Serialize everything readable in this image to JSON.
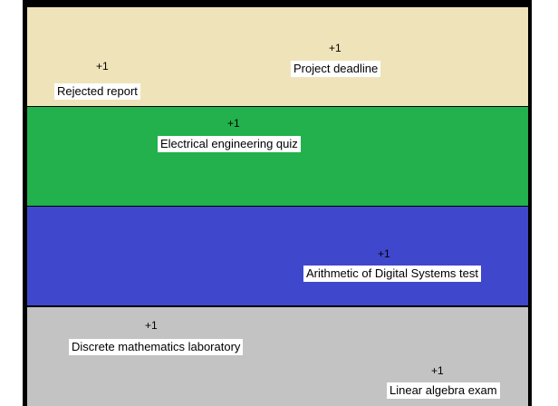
{
  "bands": [
    {
      "color": "#efe4b9",
      "items": [
        {
          "badge": "+1",
          "label": "Project deadline"
        },
        {
          "badge": "+1",
          "label": "Rejected report"
        }
      ]
    },
    {
      "color": "#22b14c",
      "items": [
        {
          "badge": "+1",
          "label": "Electrical engineering quiz"
        }
      ]
    },
    {
      "color": "#3f48cc",
      "items": [
        {
          "badge": "+1",
          "label": "Arithmetic of Digital Systems test"
        }
      ]
    },
    {
      "color": "#c3c3c3",
      "items": [
        {
          "badge": "+1",
          "label": "Discrete mathematics laboratory"
        },
        {
          "badge": "+1",
          "label": "Linear algebra exam"
        }
      ]
    }
  ]
}
